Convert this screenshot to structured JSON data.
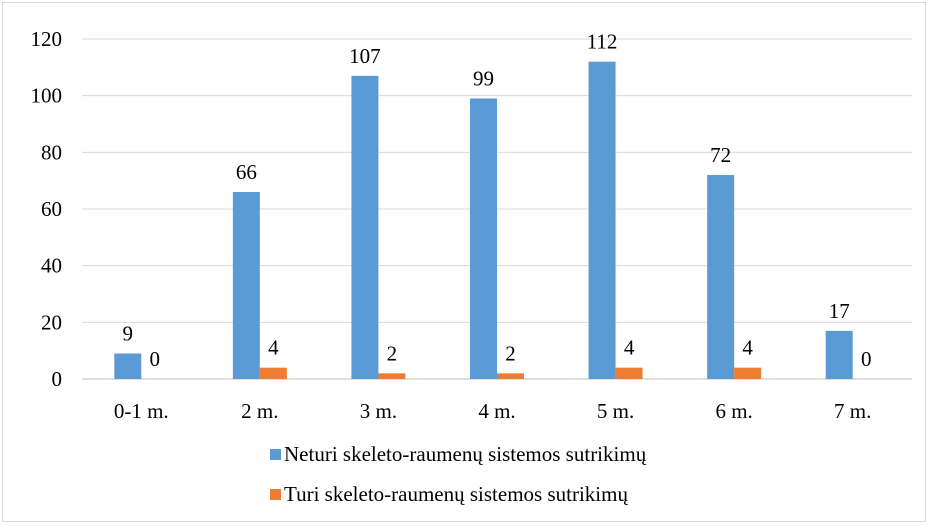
{
  "chart_data": {
    "type": "bar",
    "categories": [
      "0-1 m.",
      "2 m.",
      "3 m.",
      "4 m.",
      "5 m.",
      "6 m.",
      "7 m."
    ],
    "series": [
      {
        "name": "Neturi skeleto-raumenų sistemos sutrikimų",
        "values": [
          9,
          66,
          107,
          99,
          112,
          72,
          17
        ],
        "color": "#5b9bd5"
      },
      {
        "name": "Turi skeleto-raumenų sistemos sutrikimų",
        "values": [
          0,
          4,
          2,
          2,
          4,
          4,
          0
        ],
        "color": "#ed7d31"
      }
    ],
    "y_ticks": [
      "0",
      "20",
      "40",
      "60",
      "80",
      "100",
      "120"
    ],
    "ylim": [
      0,
      120
    ],
    "grid": true,
    "legend_position": "bottom",
    "title": "",
    "xlabel": "",
    "ylabel": ""
  }
}
